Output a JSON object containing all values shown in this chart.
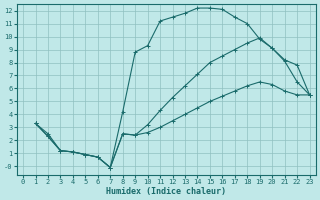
{
  "xlabel": "Humidex (Indice chaleur)",
  "background_color": "#c0e8e8",
  "grid_color": "#90c0c0",
  "line_color": "#1a6b6b",
  "xlim": [
    -0.5,
    23.5
  ],
  "ylim": [
    -0.7,
    12.5
  ],
  "xticks": [
    0,
    1,
    2,
    3,
    4,
    5,
    6,
    7,
    8,
    9,
    10,
    11,
    12,
    13,
    14,
    15,
    16,
    17,
    18,
    19,
    20,
    21,
    22,
    23
  ],
  "yticks": [
    0,
    1,
    2,
    3,
    4,
    5,
    6,
    7,
    8,
    9,
    10,
    11,
    12
  ],
  "ytick_labels": [
    "-0",
    "1",
    "2",
    "3",
    "4",
    "5",
    "6",
    "7",
    "8",
    "9",
    "10",
    "11",
    "12"
  ],
  "curve1_x": [
    1,
    2,
    3,
    4,
    5,
    6,
    7,
    8,
    9,
    10,
    11,
    12,
    13,
    14,
    15,
    16,
    17,
    18,
    19,
    20,
    21,
    22,
    23
  ],
  "curve1_y": [
    3.3,
    2.5,
    1.2,
    1.1,
    0.9,
    0.7,
    -0.1,
    4.2,
    8.8,
    9.3,
    11.2,
    11.5,
    11.8,
    12.2,
    12.2,
    12.1,
    11.5,
    11.0,
    9.8,
    9.1,
    8.1,
    6.5,
    5.5
  ],
  "curve2_x": [
    1,
    2,
    3,
    4,
    5,
    6,
    7,
    8,
    9,
    10,
    11,
    12,
    13,
    14,
    15,
    16,
    17,
    18,
    19,
    20,
    21,
    22,
    23
  ],
  "curve2_y": [
    3.3,
    2.3,
    1.2,
    1.1,
    0.9,
    0.7,
    -0.1,
    2.5,
    2.4,
    3.2,
    4.3,
    5.3,
    6.2,
    7.1,
    8.0,
    8.5,
    9.0,
    9.5,
    9.9,
    9.1,
    8.2,
    7.8,
    5.5
  ],
  "curve3_x": [
    1,
    2,
    3,
    4,
    5,
    6,
    7,
    8,
    9,
    10,
    11,
    12,
    13,
    14,
    15,
    16,
    17,
    18,
    19,
    20,
    21,
    22,
    23
  ],
  "curve3_y": [
    3.3,
    2.3,
    1.2,
    1.1,
    0.9,
    0.7,
    -0.1,
    2.5,
    2.4,
    2.6,
    3.0,
    3.5,
    4.0,
    4.5,
    5.0,
    5.4,
    5.8,
    6.2,
    6.5,
    6.3,
    5.8,
    5.5,
    5.5
  ]
}
